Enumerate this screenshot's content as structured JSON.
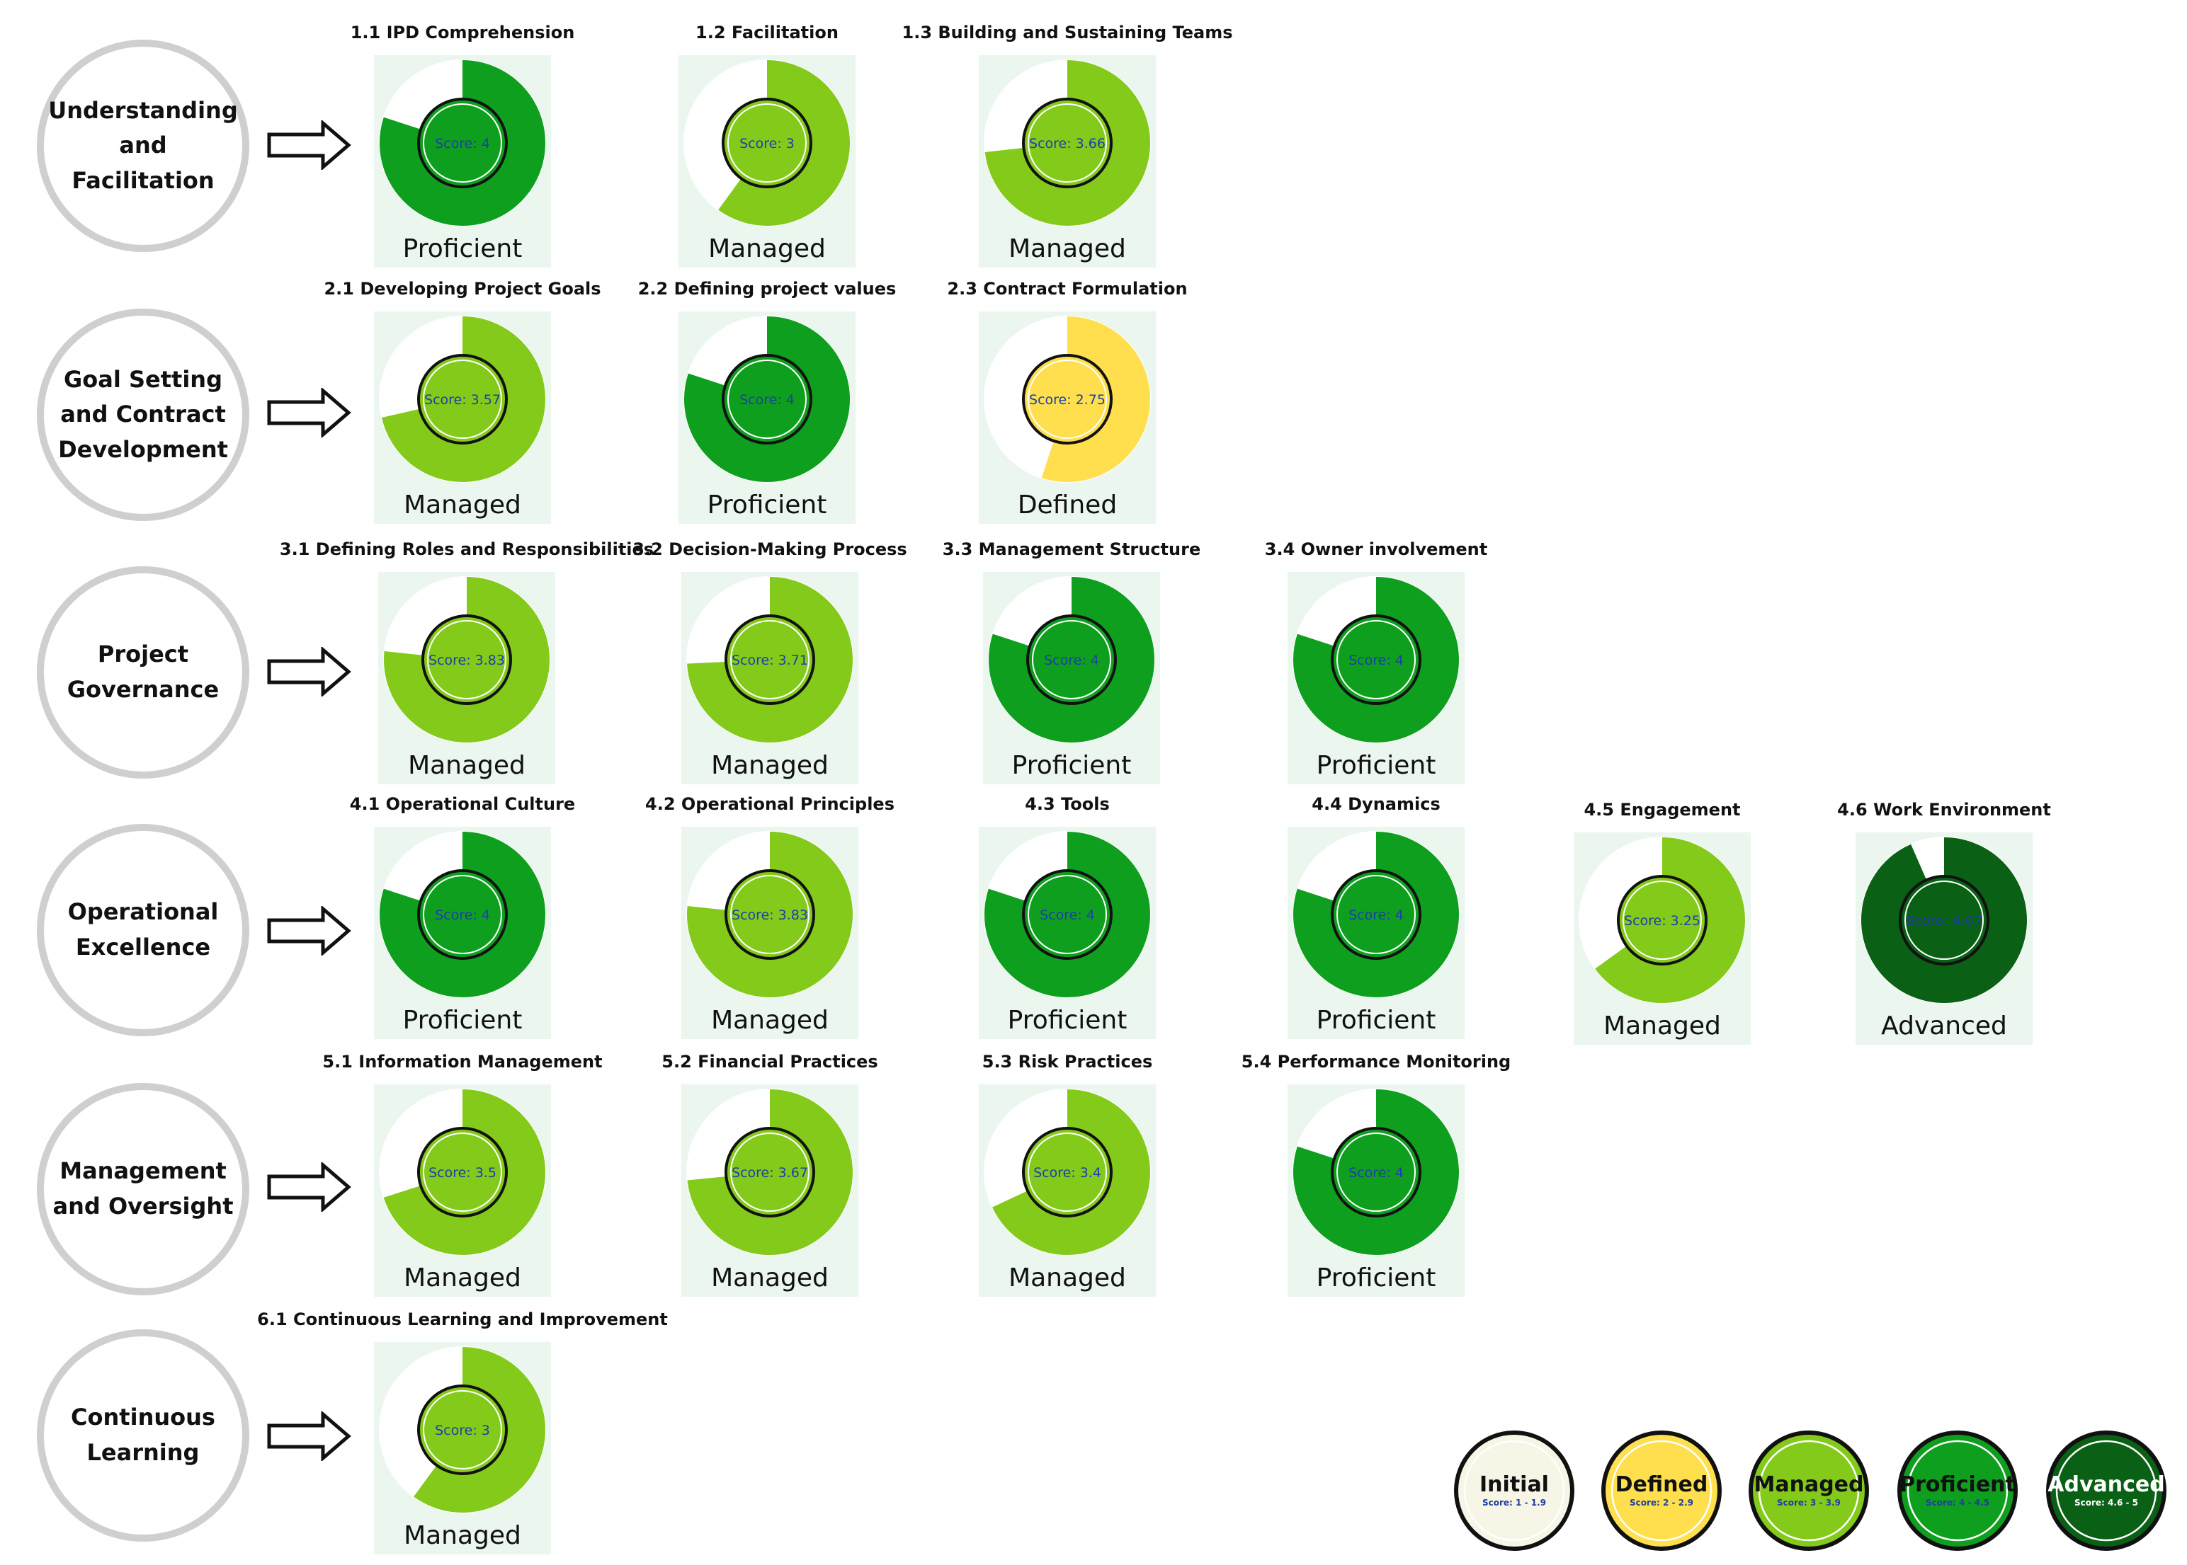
{
  "colors": {
    "initial": "#f6f5e6",
    "defined": "#ffdf4d",
    "managed": "#84ca1b",
    "proficient": "#0f9f1e",
    "advanced": "#0a6014",
    "card_background": "#eaf6ee",
    "category_border": "#cfcfcf"
  },
  "categories": [
    {
      "label": "Understanding\nand\nFacilitation",
      "metrics": [
        {
          "title": "1.1 IPD Comprehension",
          "score": 4,
          "score_text": "Score: 4",
          "level": "Proficient"
        },
        {
          "title": "1.2 Facilitation",
          "score": 3,
          "score_text": "Score: 3",
          "level": "Managed"
        },
        {
          "title": "1.3 Building and Sustaining Teams",
          "score": 3.66,
          "score_text": "Score: 3.66",
          "level": "Managed"
        }
      ]
    },
    {
      "label": "Goal Setting\nand Contract\nDevelopment",
      "metrics": [
        {
          "title": "2.1 Developing Project Goals",
          "score": 3.57,
          "score_text": "Score: 3.57",
          "level": "Managed"
        },
        {
          "title": "2.2 Defining project values",
          "score": 4,
          "score_text": "Score: 4",
          "level": "Proficient"
        },
        {
          "title": "2.3 Contract Formulation",
          "score": 2.75,
          "score_text": "Score: 2.75",
          "level": "Defined"
        }
      ]
    },
    {
      "label": "Project\nGovernance",
      "metrics": [
        {
          "title": "3.1 Defining Roles and Responsibilities",
          "score": 3.83,
          "score_text": "Score: 3.83",
          "level": "Managed"
        },
        {
          "title": "3.2 Decision-Making Process",
          "score": 3.71,
          "score_text": "Score: 3.71",
          "level": "Managed"
        },
        {
          "title": "3.3 Management Structure",
          "score": 4,
          "score_text": "Score: 4",
          "level": "Proficient"
        },
        {
          "title": "3.4 Owner involvement",
          "score": 4,
          "score_text": "Score: 4",
          "level": "Proficient"
        }
      ]
    },
    {
      "label": "Operational\nExcellence",
      "metrics": [
        {
          "title": "4.1 Operational Culture",
          "score": 4,
          "score_text": "Score: 4",
          "level": "Proficient"
        },
        {
          "title": "4.2 Operational Principles",
          "score": 3.83,
          "score_text": "Score: 3.83",
          "level": "Managed"
        },
        {
          "title": "4.3 Tools",
          "score": 4,
          "score_text": "Score: 4",
          "level": "Proficient"
        },
        {
          "title": "4.4 Dynamics",
          "score": 4,
          "score_text": "Score: 4",
          "level": "Proficient"
        },
        {
          "title": "4.5 Engagement",
          "score": 3.25,
          "score_text": "Score: 3.25",
          "level": "Managed"
        },
        {
          "title": "4.6 Work Environment",
          "score": 4.67,
          "score_text": "Score: 4.67",
          "level": "Advanced"
        }
      ]
    },
    {
      "label": "Management\nand Oversight",
      "metrics": [
        {
          "title": "5.1 Information Management",
          "score": 3.5,
          "score_text": "Score: 3.5",
          "level": "Managed"
        },
        {
          "title": "5.2 Financial Practices",
          "score": 3.67,
          "score_text": "Score: 3.67",
          "level": "Managed"
        },
        {
          "title": "5.3 Risk Practices",
          "score": 3.4,
          "score_text": "Score: 3.4",
          "level": "Managed"
        },
        {
          "title": "5.4 Performance Monitoring",
          "score": 4,
          "score_text": "Score: 4",
          "level": "Proficient"
        }
      ]
    },
    {
      "label": "Continuous\nLearning",
      "metrics": [
        {
          "title": "6.1 Continuous Learning and Improvement",
          "score": 3,
          "score_text": "Score: 3",
          "level": "Managed"
        }
      ]
    }
  ],
  "legend": [
    {
      "name": "Initial",
      "range": "Score: 1 - 1.9",
      "color": "#f6f5e6",
      "text_color": "#111111",
      "range_color": "#1f3fa0"
    },
    {
      "name": "Defined",
      "range": "Score: 2 - 2.9",
      "color": "#ffdf4d",
      "text_color": "#111111",
      "range_color": "#1f3fa0"
    },
    {
      "name": "Managed",
      "range": "Score: 3 - 3.9",
      "color": "#84ca1b",
      "text_color": "#111111",
      "range_color": "#1f3fa0"
    },
    {
      "name": "Proficient",
      "range": "Score: 4 - 4.5",
      "color": "#0f9f1e",
      "text_color": "#111111",
      "range_color": "#1f3fa0"
    },
    {
      "name": "Advanced",
      "range": "Score: 4.6 - 5",
      "color": "#0a6014",
      "text_color": "#ffffff",
      "range_color": "#ffffff"
    }
  ]
}
